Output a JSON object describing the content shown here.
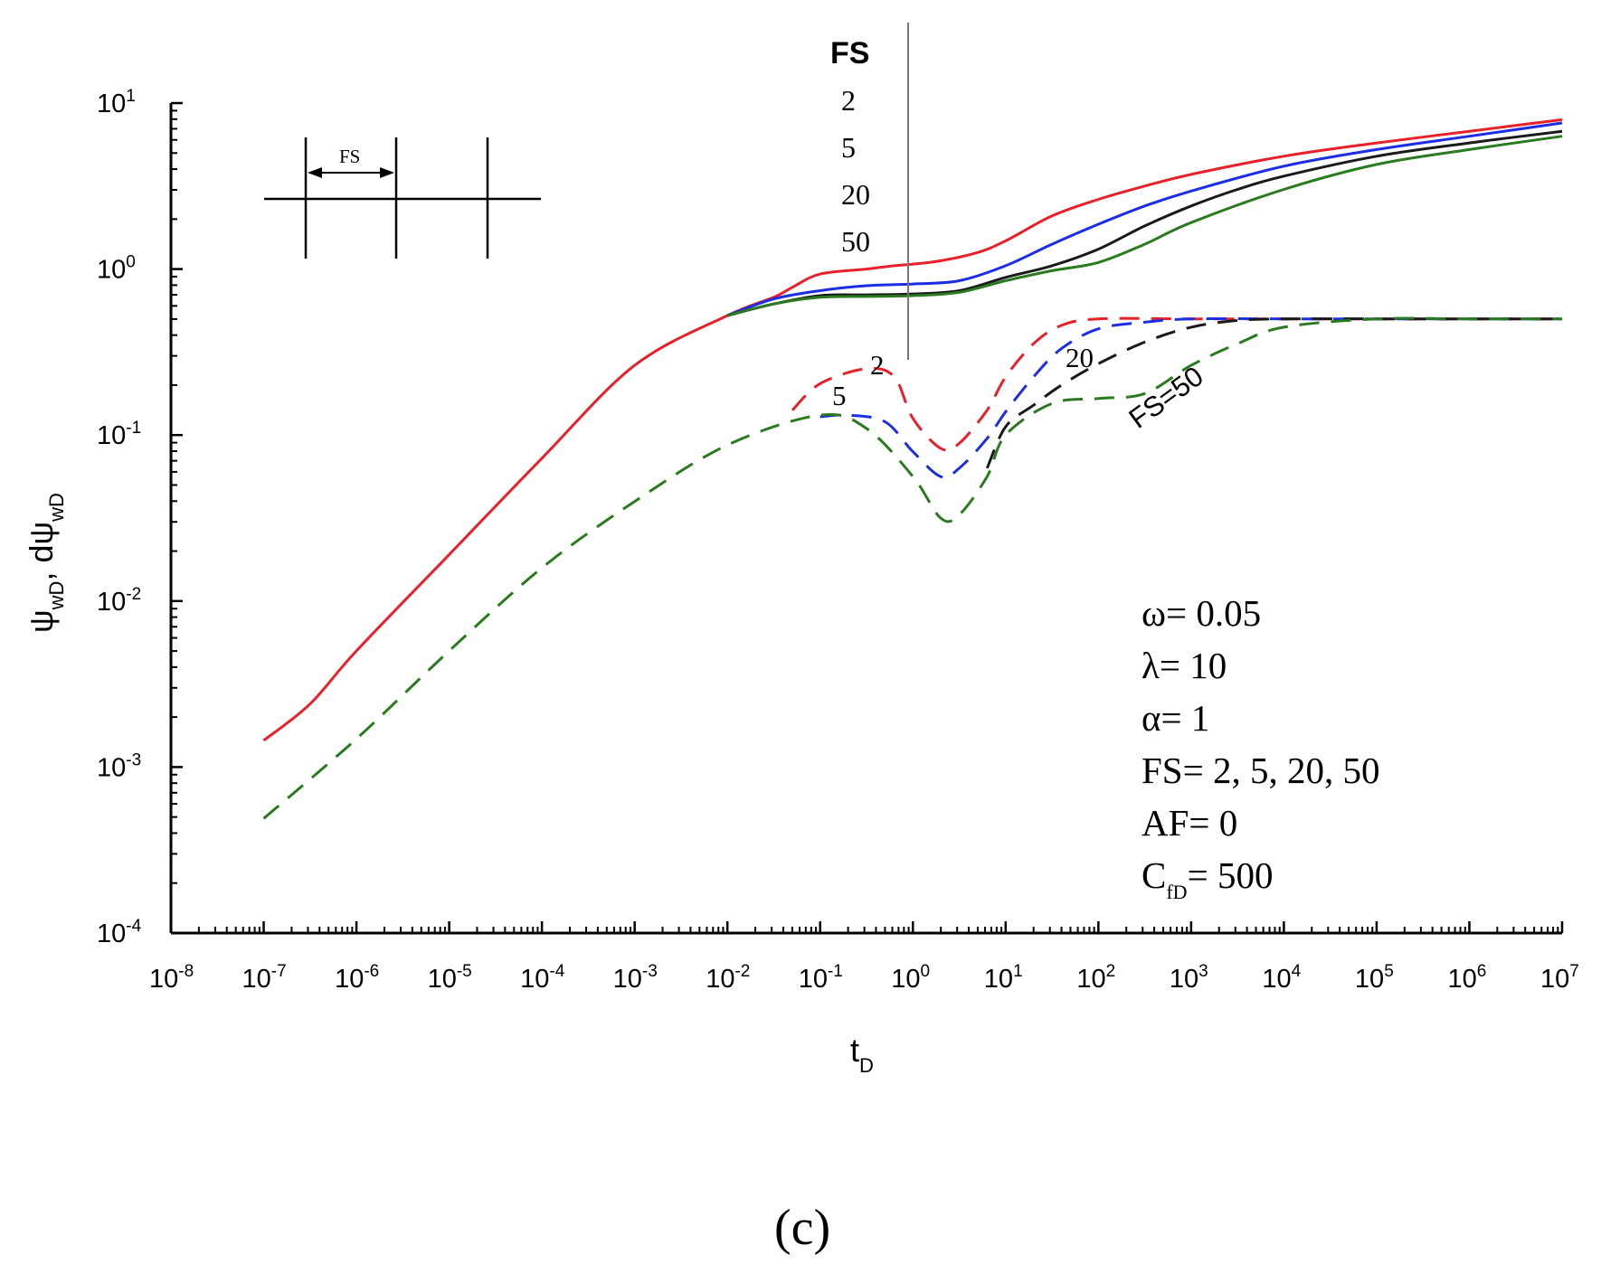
{
  "chart_data": {
    "type": "line",
    "xscale": "log",
    "yscale": "log",
    "xlim_exp": [
      -8,
      7
    ],
    "ylim_exp": [
      -4,
      1
    ],
    "x_tick_exponents": [
      "-8",
      "-7",
      "-6",
      "-5",
      "-4",
      "-3",
      "-2",
      "-1",
      "0",
      "1",
      "2",
      "3",
      "4",
      "5",
      "6",
      "7"
    ],
    "y_tick_exponents": [
      "-4",
      "-3",
      "-2",
      "-1",
      "0",
      "1"
    ],
    "tick_base": "10",
    "xlabel": {
      "main": "t",
      "sub": "D"
    },
    "ylabel": {
      "psi": "ψ",
      "sub": "wD",
      "sep": ", d",
      "psi2": "ψ",
      "sub2": "wD"
    },
    "legend": {
      "title": "FS",
      "entries": [
        "2",
        "5",
        "20",
        "50"
      ]
    },
    "curve_labels": {
      "fs2": "2",
      "fs5": "5",
      "fs20": "20",
      "fs50": "FS=50"
    },
    "inset_label": "FS",
    "parameters": {
      "omega": "ω= 0.05",
      "lambda": "λ= 10",
      "alpha": "α= 1",
      "fs": "FS= 2, 5, 20, 50",
      "af": "AF= 0",
      "cfd_main": "C",
      "cfd_sub": "fD",
      "cfd_value": "= 500"
    },
    "panel_label": "(c)",
    "series": [
      {
        "name": "FS=2 pressure",
        "kind": "pressure",
        "color": "#e8202a",
        "dash": "solid",
        "points": [
          [
            -7,
            -2.84
          ],
          [
            -6.5,
            -2.62
          ],
          [
            -6,
            -2.3
          ],
          [
            -5,
            -1.72
          ],
          [
            -4,
            -1.14
          ],
          [
            -3,
            -0.58
          ],
          [
            -2,
            -0.28
          ],
          [
            -1.5,
            -0.17
          ],
          [
            -1.3,
            -0.11
          ],
          [
            -1,
            -0.03
          ],
          [
            -0.5,
            0.0
          ],
          [
            -0.2,
            0.02
          ],
          [
            0,
            0.03
          ],
          [
            0.3,
            0.05
          ],
          [
            0.7,
            0.1
          ],
          [
            1,
            0.17
          ],
          [
            1.5,
            0.32
          ],
          [
            2,
            0.42
          ],
          [
            2.5,
            0.5
          ],
          [
            3,
            0.57
          ],
          [
            4,
            0.68
          ],
          [
            5,
            0.76
          ],
          [
            6,
            0.83
          ],
          [
            7,
            0.9
          ]
        ]
      },
      {
        "name": "FS=5 pressure",
        "kind": "pressure",
        "color": "#1c2de6",
        "dash": "solid",
        "points": [
          [
            -2,
            -0.28
          ],
          [
            -1.5,
            -0.18
          ],
          [
            -1,
            -0.13
          ],
          [
            -0.5,
            -0.1
          ],
          [
            0,
            -0.09
          ],
          [
            0.5,
            -0.07
          ],
          [
            1,
            0.02
          ],
          [
            1.5,
            0.15
          ],
          [
            2,
            0.27
          ],
          [
            2.5,
            0.38
          ],
          [
            3,
            0.47
          ],
          [
            4,
            0.62
          ],
          [
            5,
            0.72
          ],
          [
            6,
            0.8
          ],
          [
            7,
            0.88
          ]
        ]
      },
      {
        "name": "FS=20 pressure",
        "kind": "pressure",
        "color": "#1a1a1a",
        "dash": "solid",
        "points": [
          [
            -2,
            -0.28
          ],
          [
            -1.5,
            -0.21
          ],
          [
            -1,
            -0.16
          ],
          [
            -0.5,
            -0.155
          ],
          [
            0,
            -0.15
          ],
          [
            0.5,
            -0.13
          ],
          [
            1,
            -0.05
          ],
          [
            1.5,
            0.02
          ],
          [
            2,
            0.12
          ],
          [
            2.5,
            0.26
          ],
          [
            3,
            0.38
          ],
          [
            3.5,
            0.48
          ],
          [
            4,
            0.56
          ],
          [
            5,
            0.68
          ],
          [
            6,
            0.76
          ],
          [
            7,
            0.83
          ]
        ]
      },
      {
        "name": "FS=50 pressure",
        "kind": "pressure",
        "color": "#2a7a1f",
        "dash": "solid",
        "points": [
          [
            -2,
            -0.28
          ],
          [
            -1.5,
            -0.21
          ],
          [
            -1,
            -0.17
          ],
          [
            -0.5,
            -0.165
          ],
          [
            0,
            -0.16
          ],
          [
            0.5,
            -0.14
          ],
          [
            1,
            -0.07
          ],
          [
            1.5,
            -0.01
          ],
          [
            2,
            0.04
          ],
          [
            2.5,
            0.15
          ],
          [
            3,
            0.28
          ],
          [
            4,
            0.48
          ],
          [
            5,
            0.63
          ],
          [
            6,
            0.72
          ],
          [
            7,
            0.8
          ]
        ]
      },
      {
        "name": "FS=2 derivative",
        "kind": "derivative",
        "color": "#e8202a",
        "dash": "dashed",
        "points": [
          [
            -1.3,
            -0.85
          ],
          [
            -1,
            -0.69
          ],
          [
            -0.5,
            -0.6
          ],
          [
            -0.2,
            -0.65
          ],
          [
            0,
            -0.9
          ],
          [
            0.3,
            -1.08
          ],
          [
            0.5,
            -1.05
          ],
          [
            0.8,
            -0.85
          ],
          [
            1,
            -0.65
          ],
          [
            1.3,
            -0.45
          ],
          [
            1.6,
            -0.34
          ],
          [
            2,
            -0.3
          ],
          [
            3,
            -0.3
          ],
          [
            4,
            -0.3
          ],
          [
            5,
            -0.3
          ],
          [
            6,
            -0.3
          ],
          [
            7,
            -0.3
          ]
        ]
      },
      {
        "name": "FS=5 derivative",
        "kind": "derivative",
        "color": "#1c2de6",
        "dash": "dashed",
        "points": [
          [
            -1,
            -0.89
          ],
          [
            -0.7,
            -0.88
          ],
          [
            -0.3,
            -0.92
          ],
          [
            0,
            -1.1
          ],
          [
            0.3,
            -1.25
          ],
          [
            0.5,
            -1.2
          ],
          [
            0.8,
            -1.02
          ],
          [
            1,
            -0.86
          ],
          [
            1.3,
            -0.65
          ],
          [
            1.6,
            -0.48
          ],
          [
            2,
            -0.36
          ],
          [
            2.5,
            -0.32
          ],
          [
            3,
            -0.3
          ],
          [
            4,
            -0.3
          ],
          [
            5,
            -0.3
          ],
          [
            6,
            -0.3
          ],
          [
            7,
            -0.3
          ]
        ]
      },
      {
        "name": "FS=20 derivative",
        "kind": "derivative",
        "color": "#1a1a1a",
        "dash": "dashed",
        "points": [
          [
            0.8,
            -1.2
          ],
          [
            1,
            -0.95
          ],
          [
            1.3,
            -0.82
          ],
          [
            1.6,
            -0.7
          ],
          [
            2,
            -0.57
          ],
          [
            2.5,
            -0.44
          ],
          [
            3,
            -0.35
          ],
          [
            3.5,
            -0.31
          ],
          [
            4,
            -0.3
          ],
          [
            5,
            -0.3
          ],
          [
            6,
            -0.3
          ],
          [
            7,
            -0.3
          ]
        ]
      },
      {
        "name": "FS=50 derivative",
        "kind": "derivative",
        "color": "#2a7a1f",
        "dash": "dashed",
        "points": [
          [
            -7,
            -3.31
          ],
          [
            -6,
            -2.83
          ],
          [
            -5,
            -2.3
          ],
          [
            -4,
            -1.8
          ],
          [
            -3,
            -1.4
          ],
          [
            -2,
            -1.06
          ],
          [
            -1,
            -0.88
          ],
          [
            -0.5,
            -0.96
          ],
          [
            0,
            -1.25
          ],
          [
            0.3,
            -1.5
          ],
          [
            0.5,
            -1.48
          ],
          [
            0.8,
            -1.25
          ],
          [
            1,
            -1.0
          ],
          [
            1.5,
            -0.81
          ],
          [
            2,
            -0.78
          ],
          [
            2.5,
            -0.75
          ],
          [
            3,
            -0.58
          ],
          [
            3.5,
            -0.45
          ],
          [
            4,
            -0.35
          ],
          [
            5,
            -0.3
          ],
          [
            6,
            -0.3
          ],
          [
            7,
            -0.3
          ]
        ]
      }
    ]
  }
}
